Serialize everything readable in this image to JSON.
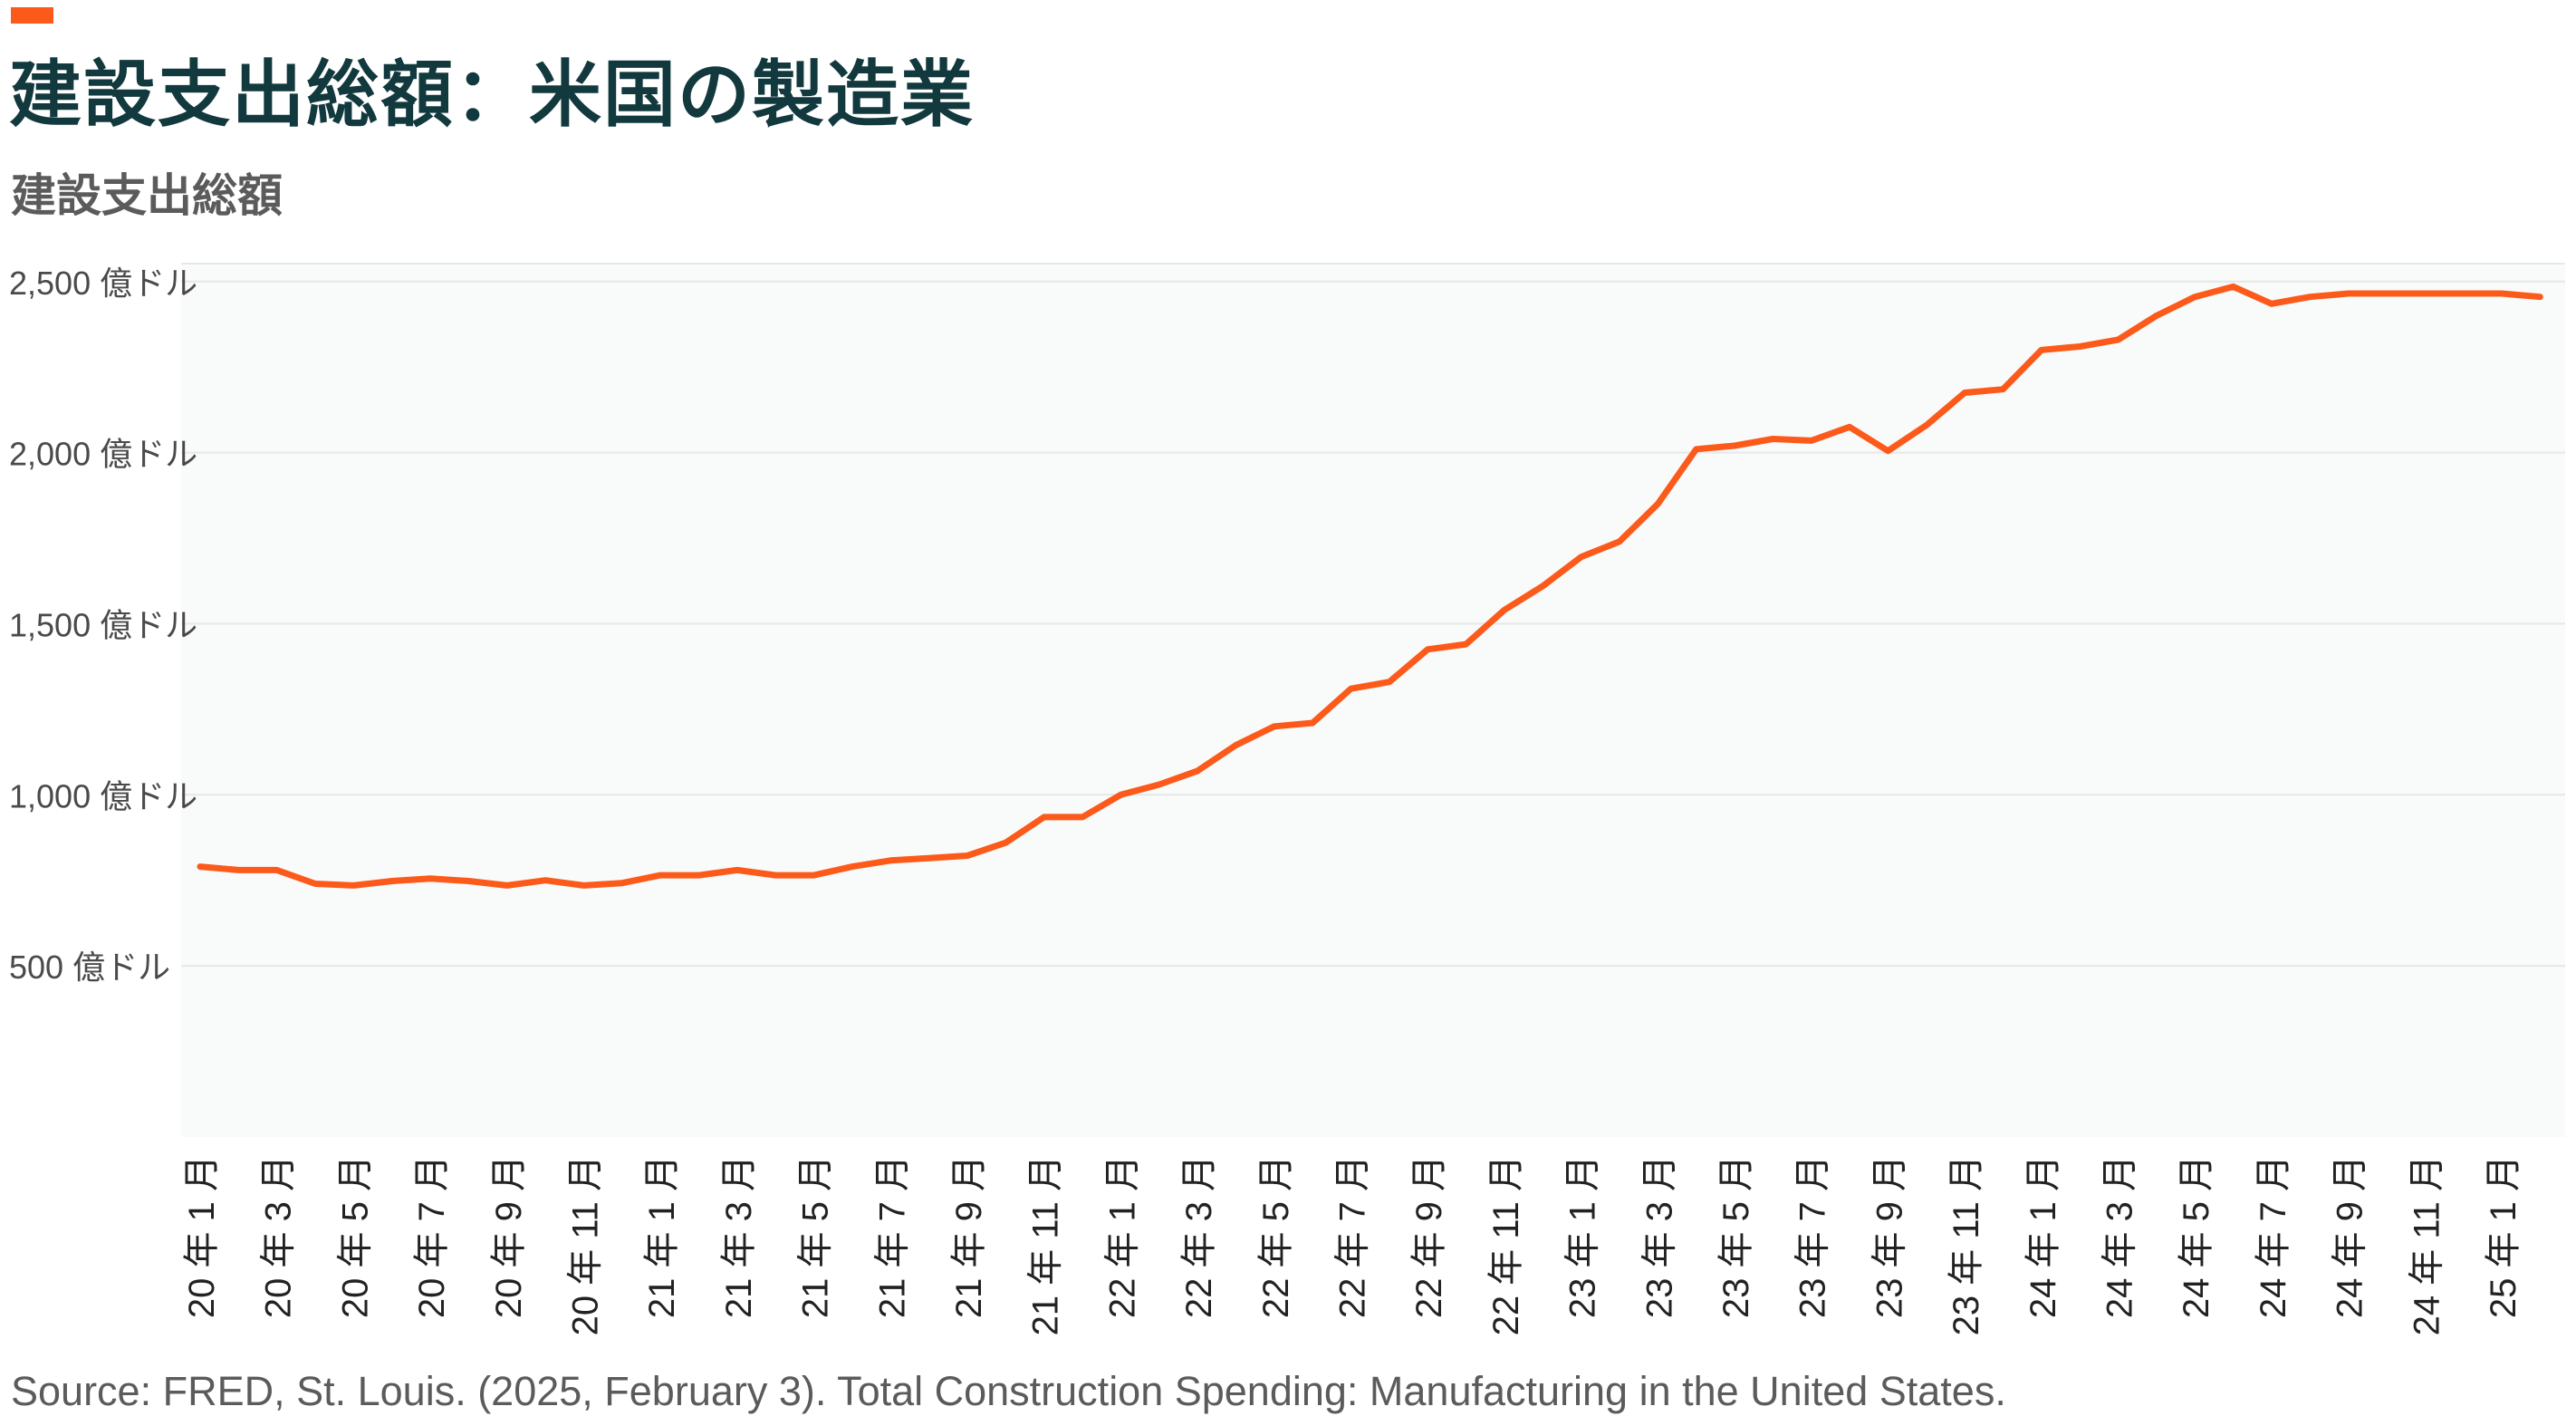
{
  "header": {
    "title": "建設支出総額：米国の製造業",
    "subtitle": "建設支出総額"
  },
  "source": "Source: FRED, St. Louis. (2025, February 3). Total Construction Spending: Manufacturing in the United States.",
  "colors": {
    "accent": "#fc5a1a",
    "line": "#fc5a1a",
    "title": "#12393d",
    "subtitle": "#5b5b5b",
    "plot_background": "#f9fafa",
    "gridline": "#e6e8e8"
  },
  "chart_data": {
    "type": "line",
    "title": "建設支出総額：米国の製造業",
    "subtitle": "建設支出総額",
    "ylim": [
      0,
      2500
    ],
    "y_ticks": [
      {
        "value": 500,
        "label": "500 億ドル"
      },
      {
        "value": 1000,
        "label": "1,000 億ドル"
      },
      {
        "value": 1500,
        "label": "1,500 億ドル"
      },
      {
        "value": 2000,
        "label": "2,000 億ドル"
      },
      {
        "value": 2500,
        "label": "2,500 億ドル"
      }
    ],
    "x_tick_labels": [
      "20 年 1 月",
      "20 年 3 月",
      "20 年 5 月",
      "20 年 7 月",
      "20 年 9 月",
      "20 年 11 月",
      "21 年 1 月",
      "21 年 3 月",
      "21 年 5 月",
      "21 年 7 月",
      "21 年 9 月",
      "21 年 11 月",
      "22 年 1 月",
      "22 年 3 月",
      "22 年 5 月",
      "22 年 7 月",
      "22 年 9 月",
      "22 年 11 月",
      "23 年 1 月",
      "23 年 3 月",
      "23 年 5 月",
      "23 年 7 月",
      "23 年 9 月",
      "23 年 11 月",
      "24 年 1 月",
      "24 年 3 月",
      "24 年 5 月",
      "24 年 7 月",
      "24 年 9 月",
      "24 年 11 月",
      "25 年 1 月"
    ],
    "x": [
      "2020-01",
      "2020-02",
      "2020-03",
      "2020-04",
      "2020-05",
      "2020-06",
      "2020-07",
      "2020-08",
      "2020-09",
      "2020-10",
      "2020-11",
      "2020-12",
      "2021-01",
      "2021-02",
      "2021-03",
      "2021-04",
      "2021-05",
      "2021-06",
      "2021-07",
      "2021-08",
      "2021-09",
      "2021-10",
      "2021-11",
      "2021-12",
      "2022-01",
      "2022-02",
      "2022-03",
      "2022-04",
      "2022-05",
      "2022-06",
      "2022-07",
      "2022-08",
      "2022-09",
      "2022-10",
      "2022-11",
      "2022-12",
      "2023-01",
      "2023-02",
      "2023-03",
      "2023-04",
      "2023-05",
      "2023-06",
      "2023-07",
      "2023-08",
      "2023-09",
      "2023-10",
      "2023-11",
      "2023-12",
      "2024-01",
      "2024-02",
      "2024-03",
      "2024-04",
      "2024-05",
      "2024-06",
      "2024-07",
      "2024-08",
      "2024-09",
      "2024-10",
      "2024-11",
      "2024-12",
      "2025-01",
      "2025-02"
    ],
    "series": [
      {
        "values": [
          790,
          780,
          780,
          740,
          735,
          748,
          755,
          748,
          735,
          750,
          735,
          742,
          765,
          765,
          780,
          765,
          765,
          790,
          808,
          815,
          822,
          860,
          935,
          935,
          1000,
          1030,
          1070,
          1145,
          1200,
          1210,
          1310,
          1330,
          1425,
          1440,
          1540,
          1610,
          1695,
          1740,
          1850,
          2010,
          2020,
          2040,
          2035,
          2075,
          2005,
          2080,
          2175,
          2185,
          2300,
          2310,
          2330,
          2400,
          2455,
          2485,
          2435,
          2455,
          2465,
          2465,
          2465,
          2465,
          2465,
          2455
        ]
      }
    ]
  }
}
